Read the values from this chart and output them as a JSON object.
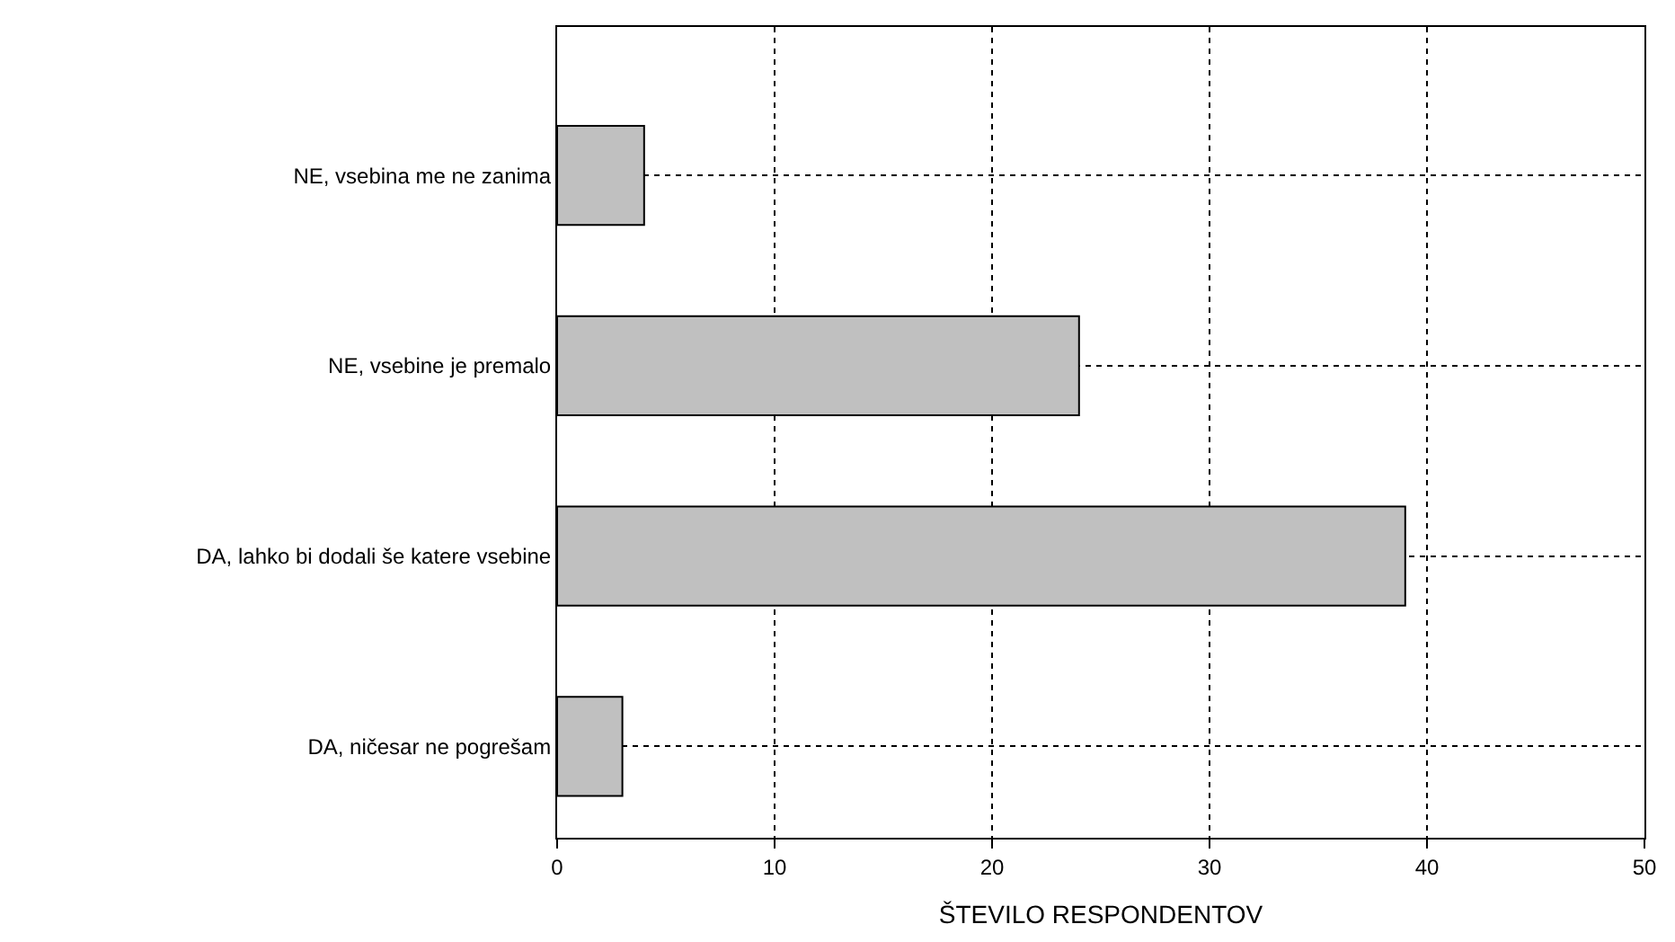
{
  "chart_data": {
    "type": "bar",
    "orientation": "horizontal",
    "xlabel": "ŠTEVILO RESPONDENTOV",
    "categories": [
      "NE, vsebina me ne zanima",
      "NE, vsebine je premalo",
      "DA, lahko bi dodali še katere vsebine",
      "DA, ničesar ne pogrešam"
    ],
    "values": [
      4,
      24,
      39,
      3
    ],
    "color": "#c0c0c0",
    "xlim": [
      0,
      50
    ],
    "xticks": [
      0,
      10,
      20,
      30,
      40,
      50
    ],
    "grid": true,
    "legend": false
  }
}
